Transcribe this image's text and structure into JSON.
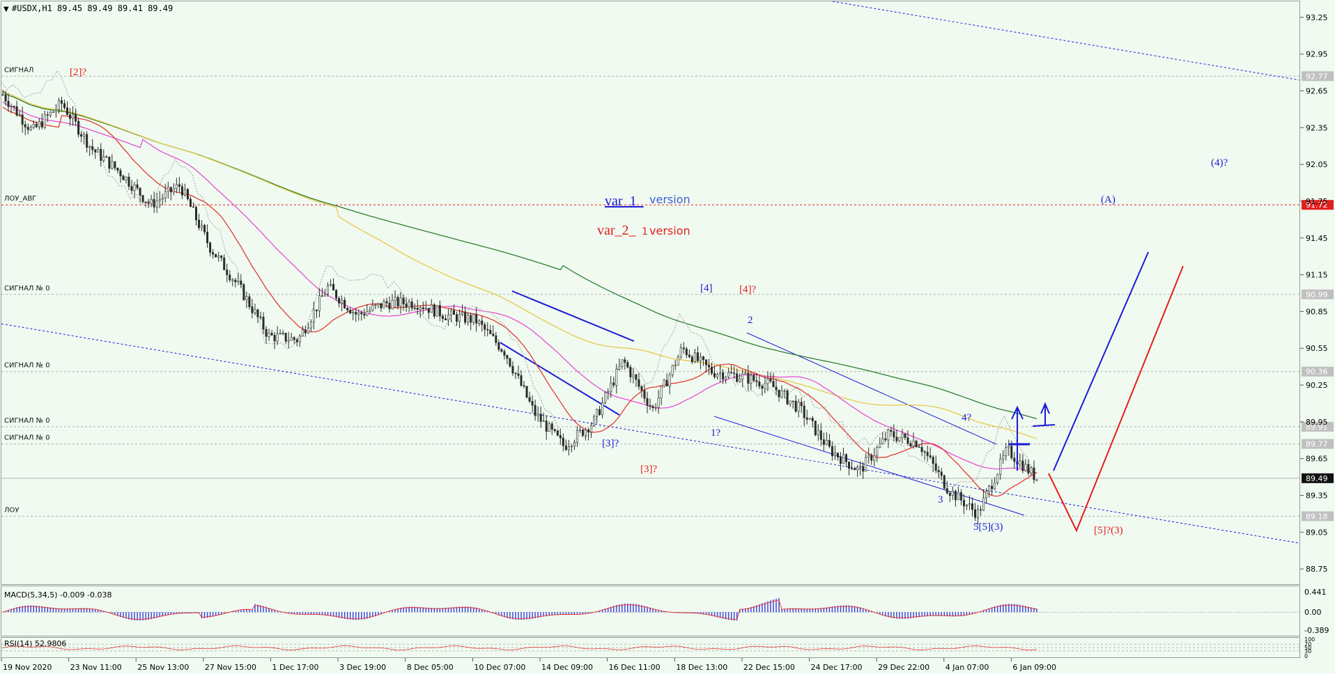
{
  "window": {
    "title": "#USDX,H1  89.45 89.49 89.41 89.49"
  },
  "colors": {
    "background": "#f0faf0",
    "candle": "#2a2a2a",
    "ma_green": "#2e7d32",
    "ma_yellow": "#e8c84a",
    "ma_magenta": "#e64fd6",
    "ma_red": "#e53935",
    "wave_blue": "#1a1ad6",
    "wave_red": "#e51c1c",
    "macd_hist": "#3a3ae0",
    "price_tag_grey": "#b8b8b8",
    "price_tag_red": "#e02020"
  },
  "price_axis": {
    "ticks": [
      "93.25",
      "92.95",
      "92.65",
      "92.35",
      "92.05",
      "91.75",
      "91.45",
      "91.15",
      "90.85",
      "90.55",
      "90.25",
      "89.95",
      "89.65",
      "89.35",
      "89.05",
      "88.75"
    ],
    "tags": [
      {
        "value": "92.77",
        "style": "grey"
      },
      {
        "value": "91.72",
        "style": "red"
      },
      {
        "value": "90.99",
        "style": "grey"
      },
      {
        "value": "90.36",
        "style": "grey"
      },
      {
        "value": "89.91",
        "style": "grey"
      },
      {
        "value": "89.77",
        "style": "grey"
      },
      {
        "value": "89.49",
        "style": "dark"
      },
      {
        "value": "89.18",
        "style": "grey"
      }
    ]
  },
  "level_labels": [
    {
      "text": "СИГНАЛ",
      "price": 92.77
    },
    {
      "text": "ЛОУ_АВГ",
      "price": 91.72
    },
    {
      "text": "СИГНАЛ № 0",
      "price": 90.99
    },
    {
      "text": "СИГНАЛ № 0",
      "price": 90.36
    },
    {
      "text": "СИГНАЛ № 0",
      "price": 89.91
    },
    {
      "text": "СИГНАЛ № 0",
      "price": 89.77
    },
    {
      "text": "ЛОУ",
      "price": 89.18
    }
  ],
  "time_axis": [
    "19 Nov 2020",
    "23 Nov 11:00",
    "25 Nov 13:00",
    "27 Nov 15:00",
    "1 Dec 17:00",
    "3 Dec 19:00",
    "8 Dec 05:00",
    "10 Dec 07:00",
    "14 Dec 09:00",
    "16 Dec 11:00",
    "18 Dec 13:00",
    "22 Dec 15:00",
    "24 Dec 17:00",
    "29 Dec 22:00",
    "4 Jan 07:00",
    "6 Jan 09:00"
  ],
  "annotations": {
    "var1_main": "var_1_",
    "var1_sub": "version",
    "var2_main": "var_2_",
    "var2_sub": "version",
    "var2_mark": "1",
    "waves_red": [
      "[2]?",
      "[4]?",
      "[3]?",
      "[5]?(3)"
    ],
    "waves_blue": [
      "[4]",
      "2",
      "[3]?",
      "1?",
      "4?",
      "3",
      "5[5](3)",
      "(4)?",
      "(A)"
    ]
  },
  "macd": {
    "label": "MACD(5,34,5) -0.009 -0.038",
    "ticks": [
      "0.441",
      "0.00",
      "-0.389"
    ]
  },
  "rsi": {
    "label": "RSI(14) 52.9806",
    "ticks": [
      "100",
      "70",
      "50",
      "30",
      "0"
    ]
  },
  "chart_data": {
    "type": "candlestick",
    "symbol": "#USDX",
    "timeframe": "H1",
    "ohlc_last": {
      "open": 89.45,
      "high": 89.49,
      "low": 89.41,
      "close": 89.49
    },
    "ylim": [
      88.62,
      93.38
    ],
    "grid": false,
    "approx_close_path": [
      {
        "x": "19 Nov 2020",
        "y": 92.62
      },
      {
        "x": "20 Nov",
        "y": 92.32
      },
      {
        "x": "23 Nov 11:00",
        "y": 92.55
      },
      {
        "x": "25 Nov 13:00",
        "y": 92.18
      },
      {
        "x": "26 Nov",
        "y": 91.98
      },
      {
        "x": "27 Nov 15:00",
        "y": 91.72
      },
      {
        "x": "30 Nov",
        "y": 91.88
      },
      {
        "x": "1 Dec 17:00",
        "y": 91.38
      },
      {
        "x": "2 Dec",
        "y": 91.05
      },
      {
        "x": "3 Dec 19:00",
        "y": 90.65
      },
      {
        "x": "4 Dec",
        "y": 90.62
      },
      {
        "x": "7 Dec",
        "y": 91.05
      },
      {
        "x": "8 Dec 05:00",
        "y": 90.82
      },
      {
        "x": "9 Dec",
        "y": 90.92
      },
      {
        "x": "10 Dec 07:00",
        "y": 90.92
      },
      {
        "x": "11 Dec",
        "y": 90.82
      },
      {
        "x": "14 Dec 09:00",
        "y": 90.78
      },
      {
        "x": "15 Dec",
        "y": 90.52
      },
      {
        "x": "16 Dec 11:00",
        "y": 90.02
      },
      {
        "x": "17 Dec",
        "y": 89.75
      },
      {
        "x": "17 Dec 18:00",
        "y": 89.95
      },
      {
        "x": "18 Dec 13:00",
        "y": 90.45
      },
      {
        "x": "18 Dec 20:00",
        "y": 90.05
      },
      {
        "x": "21 Dec",
        "y": 90.55
      },
      {
        "x": "22 Dec 15:00",
        "y": 90.36
      },
      {
        "x": "23 Dec",
        "y": 90.32
      },
      {
        "x": "24 Dec 17:00",
        "y": 90.25
      },
      {
        "x": "28 Dec",
        "y": 90.05
      },
      {
        "x": "29 Dec 22:00",
        "y": 89.72
      },
      {
        "x": "30 Dec",
        "y": 89.55
      },
      {
        "x": "31 Dec",
        "y": 89.85
      },
      {
        "x": "4 Jan 07:00",
        "y": 89.78
      },
      {
        "x": "5 Jan",
        "y": 89.4
      },
      {
        "x": "6 Jan 09:00",
        "y": 89.2
      },
      {
        "x": "6 Jan 20:00",
        "y": 89.72
      },
      {
        "x": "7 Jan",
        "y": 89.49
      }
    ],
    "moving_averages": [
      {
        "color": "#2e7d32",
        "start": 92.66,
        "end": 89.88
      },
      {
        "color": "#e8c84a",
        "start": 92.68,
        "end": 89.78
      },
      {
        "color": "#e64fd6",
        "start": 92.52,
        "end": 89.6
      },
      {
        "color": "#e53935",
        "start": 92.45,
        "end": 89.5
      }
    ],
    "projections": {
      "blue": {
        "from": 89.59,
        "to": 91.37
      },
      "red": {
        "from": 89.59,
        "via": 89.08,
        "to": 91.22
      }
    },
    "macd_series": {
      "min": -0.389,
      "max": 0.441
    },
    "rsi_levels": [
      70,
      50,
      30
    ]
  }
}
